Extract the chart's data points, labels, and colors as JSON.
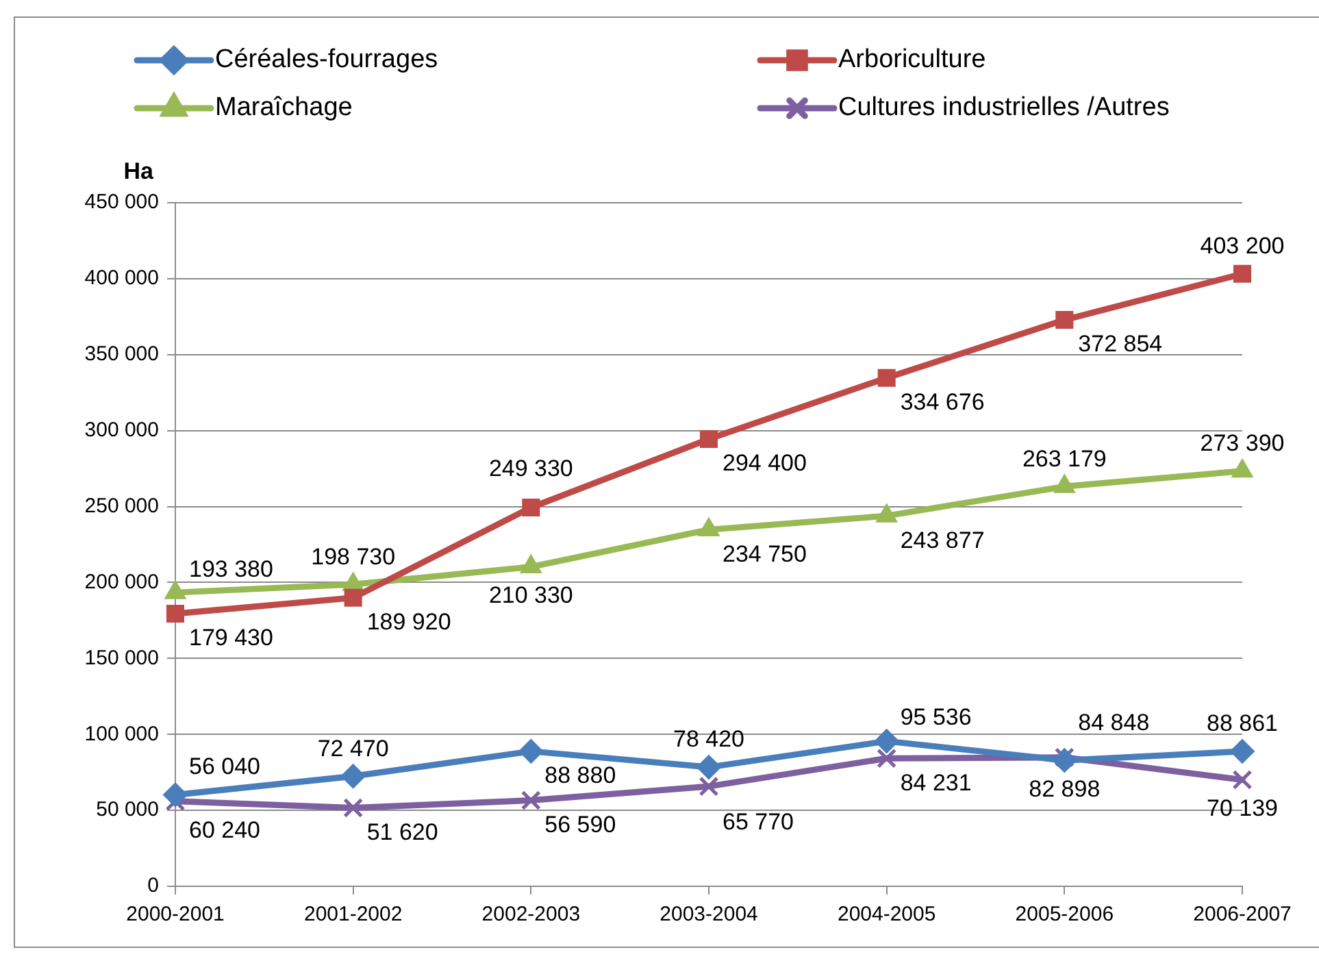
{
  "chart_data": {
    "type": "line",
    "ylabel": "Ha",
    "categories": [
      "2000-2001",
      "2001-2002",
      "2002-2003",
      "2003-2004",
      "2004-2005",
      "2005-2006",
      "2006-2007"
    ],
    "series": [
      {
        "name": "Céréales-fourrages",
        "color": "#4a7ebb",
        "marker": "diamond",
        "values": [
          60240,
          72470,
          88880,
          78420,
          95536,
          82898,
          88861
        ],
        "value_labels": [
          "60 240",
          "72 470",
          "88 880",
          "78 420",
          "95 536",
          "82 898",
          "88 861"
        ]
      },
      {
        "name": "Arboriculture",
        "color": "#be4b48",
        "marker": "square",
        "values": [
          179430,
          189920,
          249330,
          294400,
          334676,
          372854,
          403200
        ],
        "value_labels": [
          "179 430",
          "189 920",
          "249 330",
          "294 400",
          "334 676",
          "372 854",
          "403 200"
        ]
      },
      {
        "name": "Maraîchage",
        "color": "#98b954",
        "marker": "triangle",
        "values": [
          193380,
          198730,
          210330,
          234750,
          243877,
          263179,
          273390
        ],
        "value_labels": [
          "193 380",
          "198 730",
          "210 330",
          "234 750",
          "243 877",
          "263 179",
          "273 390"
        ]
      },
      {
        "name": "Cultures industrielles /Autres",
        "color": "#7d60a0",
        "marker": "cross",
        "values": [
          56040,
          51620,
          56590,
          65770,
          84231,
          84848,
          70139
        ],
        "value_labels": [
          "56 040",
          "51 620",
          "56 590",
          "65 770",
          "84 231",
          "84 848",
          "70 139"
        ]
      }
    ],
    "ylim": [
      0,
      450000
    ],
    "yticks": [
      0,
      {
        "value": 50000,
        "label": "50 000"
      },
      {
        "value": 100000,
        "label": "100 000"
      },
      {
        "value": 150000,
        "label": "150 000"
      },
      {
        "value": 200000,
        "label": "200 000"
      },
      {
        "value": 250000,
        "label": "250 000"
      },
      {
        "value": 300000,
        "label": "300 000"
      },
      {
        "value": 350000,
        "label": "350 000"
      },
      {
        "value": 400000,
        "label": "400 000"
      },
      {
        "value": 450000,
        "label": "450 000"
      }
    ],
    "grid": "y",
    "legend": "top"
  }
}
